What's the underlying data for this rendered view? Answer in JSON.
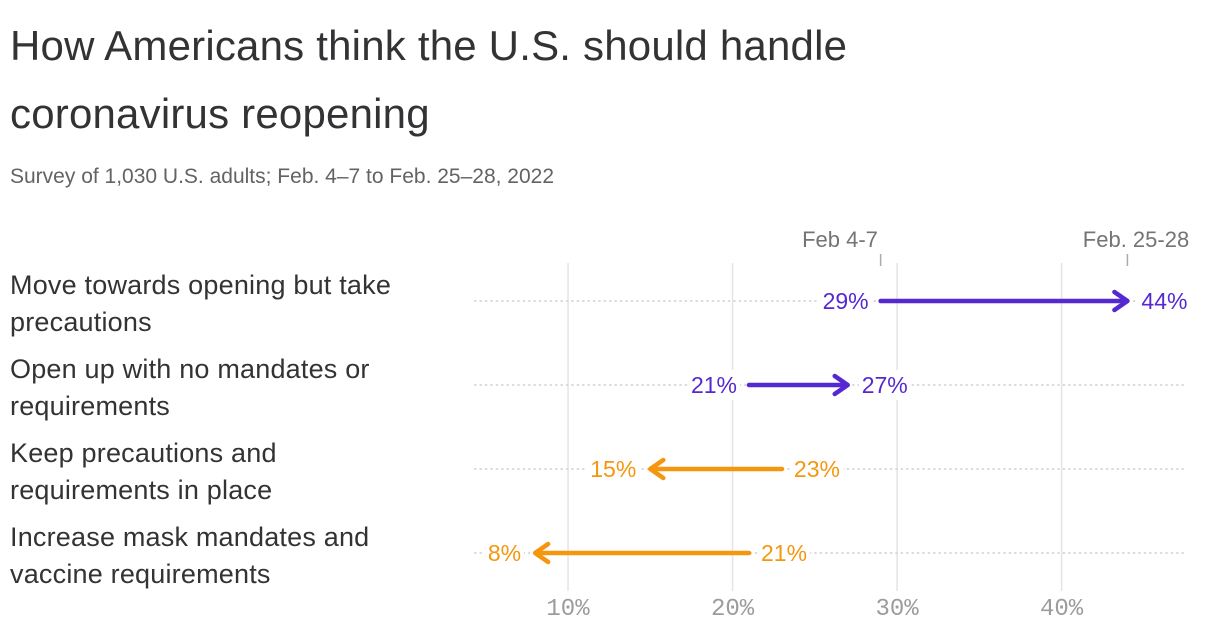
{
  "chart_data": {
    "type": "arrow",
    "title": "How Americans think the U.S. should handle coronavirus reopening",
    "subtitle": "Survey of 1,030 U.S. adults; Feb. 4–7 to Feb. 25–28, 2022",
    "column_labels": [
      "Feb 4-7",
      "Feb. 25-28"
    ],
    "unit": "%",
    "rows": [
      {
        "label": "Move towards opening but take precautions",
        "label_lines": [
          "Move towards opening but take",
          "precautions"
        ],
        "from": 29,
        "to": 44,
        "from_label": "29%",
        "to_label": "44%",
        "trend": "increase"
      },
      {
        "label": "Open up with no mandates or requirements",
        "label_lines": [
          "Open up with no mandates or",
          "requirements"
        ],
        "from": 21,
        "to": 27,
        "from_label": "21%",
        "to_label": "27%",
        "trend": "increase"
      },
      {
        "label": "Keep precautions and requirements in place",
        "label_lines": [
          "Keep precautions and",
          "requirements in place"
        ],
        "from": 23,
        "to": 15,
        "from_label": "23%",
        "to_label": "15%",
        "trend": "decrease"
      },
      {
        "label": "Increase mask mandates and vaccine requirements",
        "label_lines": [
          "Increase mask mandates and",
          "vaccine requirements"
        ],
        "from": 21,
        "to": 8,
        "from_label": "21%",
        "to_label": "8%",
        "trend": "decrease"
      }
    ],
    "colors": {
      "increase": "#5628d2",
      "decrease": "#f4970e"
    },
    "x_axis": {
      "ticks": [
        10,
        20,
        30,
        40
      ],
      "tick_labels": [
        "10%",
        "20%",
        "30%",
        "40%"
      ],
      "range": [
        0,
        47.5
      ],
      "grid": true
    },
    "legend": "none"
  }
}
